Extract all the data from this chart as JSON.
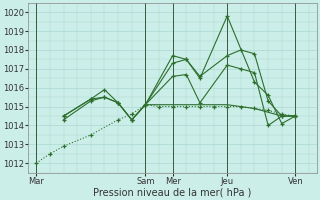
{
  "background_color": "#cceee8",
  "grid_color": "#aad8d0",
  "line_color": "#2d6e2d",
  "vline_color": "#3a5a3a",
  "ylabel": "Pression niveau de la mer( hPa )",
  "ylim": [
    1011.5,
    1020.5
  ],
  "yticks": [
    1012,
    1013,
    1014,
    1015,
    1016,
    1017,
    1018,
    1019,
    1020
  ],
  "xtick_labels": [
    "Mar",
    "Sam",
    "Mer",
    "Jeu",
    "Ven"
  ],
  "xtick_positions": [
    0,
    4,
    5,
    7,
    9.5
  ],
  "vline_positions": [
    0,
    4,
    5,
    7,
    9.5
  ],
  "xlim": [
    -0.3,
    10.3
  ],
  "series": [
    {
      "x": [
        0.0,
        0.5,
        1.0,
        2.0,
        3.0,
        3.5,
        4.0,
        4.5,
        5.0,
        5.5,
        6.0,
        6.5,
        7.0,
        7.5,
        8.0,
        8.5,
        9.0,
        9.5
      ],
      "y": [
        1012.0,
        1012.5,
        1012.9,
        1013.5,
        1014.3,
        1014.6,
        1015.1,
        1015.0,
        1015.0,
        1015.0,
        1015.0,
        1015.0,
        1015.0,
        1015.0,
        1014.9,
        1014.8,
        1014.6,
        1014.5
      ],
      "style": "dotted",
      "marker": true
    },
    {
      "x": [
        1.0,
        2.0,
        2.5,
        3.0,
        3.5,
        4.0,
        5.0,
        5.5,
        6.0,
        7.0,
        7.5,
        8.0,
        8.5,
        9.0,
        9.5
      ],
      "y": [
        1014.3,
        1015.3,
        1015.5,
        1015.2,
        1014.3,
        1015.1,
        1017.3,
        1017.5,
        1016.6,
        1017.7,
        1018.0,
        1017.8,
        1015.3,
        1014.5,
        1014.5
      ],
      "style": "solid",
      "marker": true
    },
    {
      "x": [
        1.0,
        2.0,
        2.5,
        3.0,
        3.5,
        4.0,
        5.0,
        5.5,
        6.0,
        7.0,
        8.0,
        8.5,
        9.0,
        9.5
      ],
      "y": [
        1014.5,
        1015.4,
        1015.9,
        1015.2,
        1014.3,
        1015.1,
        1017.7,
        1017.5,
        1016.5,
        1019.8,
        1016.3,
        1015.6,
        1014.1,
        1014.5
      ],
      "style": "solid",
      "marker": true
    },
    {
      "x": [
        1.0,
        2.0,
        2.5,
        3.0,
        3.5,
        4.0,
        5.0,
        5.5,
        6.0,
        7.0,
        7.5,
        8.0,
        8.5,
        9.0,
        9.5
      ],
      "y": [
        1014.5,
        1015.4,
        1015.5,
        1015.2,
        1014.3,
        1015.1,
        1016.6,
        1016.7,
        1015.2,
        1017.2,
        1017.0,
        1016.8,
        1014.0,
        1014.5,
        1014.5
      ],
      "style": "solid",
      "marker": true
    },
    {
      "x": [
        4.0,
        5.0,
        6.0,
        7.0,
        8.0,
        9.0,
        9.5
      ],
      "y": [
        1015.1,
        1015.1,
        1015.1,
        1015.1,
        1014.9,
        1014.5,
        1014.5
      ],
      "style": "solid",
      "marker": false
    }
  ],
  "tick_fontsize": 6,
  "label_fontsize": 7
}
